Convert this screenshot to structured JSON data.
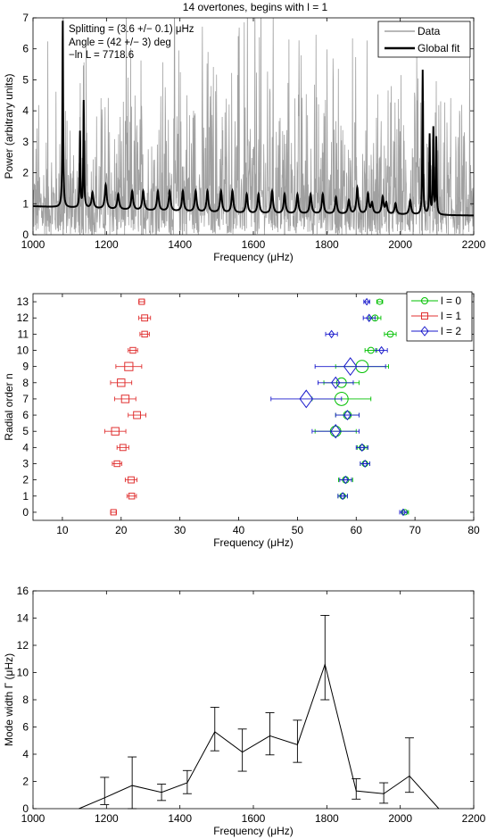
{
  "chart_data": [
    {
      "type": "line",
      "title": "14 overtones, begins with l = 1",
      "xlabel": "Frequency (μHz)",
      "ylabel": "Power (arbitrary units)",
      "xlim": [
        1000,
        2200
      ],
      "ylim": [
        0,
        7
      ],
      "xticks": [
        1000,
        1200,
        1400,
        1600,
        1800,
        2000,
        2200
      ],
      "yticks": [
        0,
        1,
        2,
        3,
        4,
        5,
        6,
        7
      ],
      "legend_position": "top-right",
      "annotations": [
        "Splitting = (3.6 +/− 0.1) μHz",
        "Angle = (42 +/− 3) deg",
        "−ln L = 7718.6"
      ],
      "series": [
        {
          "name": "Data",
          "color": "#a0a0a0",
          "description": "noisy power spectrum with tall spikes at mode frequencies",
          "background_level": 0.9,
          "spikes": [
            [
              1082,
              7.0
            ],
            [
              1128,
              3.8
            ],
            [
              1137,
              4.3
            ],
            [
              1160,
              1.4
            ],
            [
              1196,
              1.5
            ],
            [
              1228,
              1.5
            ],
            [
              1296,
              1.7
            ],
            [
              1376,
              1.6
            ],
            [
              1407,
              2.2
            ],
            [
              1605,
              2.0
            ],
            [
              1685,
              1.5
            ],
            [
              1830,
              2.1
            ],
            [
              1880,
              2.5
            ],
            [
              1910,
              1.8
            ],
            [
              1938,
              2.3
            ],
            [
              1970,
              2.2
            ],
            [
              2035,
              2.5
            ],
            [
              2060,
              2.3
            ],
            [
              2100,
              2.0
            ]
          ]
        },
        {
          "name": "Global fit",
          "color": "#000000",
          "baseline": [
            [
              1000,
              0.92
            ],
            [
              1300,
              0.78
            ],
            [
              1600,
              0.68
            ],
            [
              1900,
              0.66
            ],
            [
              2200,
              0.62
            ]
          ],
          "peaks": [
            [
              1081,
              6.9
            ],
            [
              1128,
              3.3
            ],
            [
              1138,
              4.3
            ],
            [
              1162,
              1.35
            ],
            [
              1198,
              1.6
            ],
            [
              1232,
              1.3
            ],
            [
              1270,
              1.4
            ],
            [
              1300,
              1.4
            ],
            [
              1340,
              1.4
            ],
            [
              1372,
              1.4
            ],
            [
              1408,
              1.4
            ],
            [
              1443,
              1.4
            ],
            [
              1475,
              1.4
            ],
            [
              1512,
              1.4
            ],
            [
              1543,
              1.4
            ],
            [
              1582,
              1.3
            ],
            [
              1614,
              1.3
            ],
            [
              1651,
              1.4
            ],
            [
              1685,
              1.3
            ],
            [
              1720,
              1.3
            ],
            [
              1756,
              1.3
            ],
            [
              1789,
              1.3
            ],
            [
              1825,
              1.2
            ],
            [
              1860,
              1.1
            ],
            [
              1883,
              1.5
            ],
            [
              1912,
              1.3
            ],
            [
              1923,
              1.0
            ],
            [
              1952,
              1.2
            ],
            [
              1962,
              1.0
            ],
            [
              1987,
              1.0
            ],
            [
              2027,
              1.1
            ],
            [
              2061,
              5.3
            ],
            [
              2080,
              3.2
            ],
            [
              2090,
              3.4
            ],
            [
              2098,
              3.1
            ]
          ]
        }
      ]
    },
    {
      "type": "scatter",
      "xlabel": "Frequency (μHz)",
      "ylabel": "Radial order n",
      "xlim": [
        5,
        80
      ],
      "ylim": [
        -0.5,
        13.5
      ],
      "xticks": [
        10,
        20,
        30,
        40,
        50,
        60,
        70,
        80
      ],
      "yticks": [
        0,
        1,
        2,
        3,
        4,
        5,
        6,
        7,
        8,
        9,
        10,
        11,
        12,
        13
      ],
      "legend_position": "top-right",
      "series": [
        {
          "name": "l = 0",
          "color": "#00c000",
          "marker": "circle",
          "points": [
            [
              68.3,
              0,
              0.6
            ],
            [
              57.7,
              1,
              0.8
            ],
            [
              58.2,
              2,
              1.2
            ],
            [
              61.5,
              3,
              0.8
            ],
            [
              61.0,
              4,
              0.8
            ],
            [
              56.5,
              5,
              3.5
            ],
            [
              58.5,
              6,
              2.0
            ],
            [
              57.5,
              7,
              5.0
            ],
            [
              57.5,
              8,
              3.0
            ],
            [
              61.0,
              9,
              4.5
            ],
            [
              62.5,
              10,
              1.0
            ],
            [
              65.8,
              11,
              1.0
            ],
            [
              63.2,
              12,
              1.0
            ],
            [
              64.0,
              13,
              0.5
            ]
          ]
        },
        {
          "name": "l = 1",
          "color": "#e03030",
          "marker": "square",
          "points": [
            [
              18.7,
              0,
              0.5
            ],
            [
              21.8,
              1,
              0.8
            ],
            [
              21.7,
              2,
              1.0
            ],
            [
              19.3,
              3,
              0.8
            ],
            [
              20.3,
              4,
              1.0
            ],
            [
              19.0,
              5,
              1.8
            ],
            [
              22.7,
              6,
              1.5
            ],
            [
              20.7,
              7,
              1.8
            ],
            [
              20.0,
              8,
              1.8
            ],
            [
              21.3,
              9,
              2.2
            ],
            [
              22.0,
              10,
              0.8
            ],
            [
              24.0,
              11,
              0.8
            ],
            [
              24.0,
              12,
              1.0
            ],
            [
              23.5,
              13,
              0.5
            ]
          ]
        },
        {
          "name": "l = 2",
          "color": "#1a1acc",
          "marker": "diamond",
          "points": [
            [
              68.0,
              0,
              0.6
            ],
            [
              57.7,
              1,
              0.8
            ],
            [
              58.2,
              2,
              1.0
            ],
            [
              61.5,
              3,
              0.8
            ],
            [
              61.0,
              4,
              1.0
            ],
            [
              56.5,
              5,
              4.0
            ],
            [
              58.5,
              6,
              2.0
            ],
            [
              51.5,
              7,
              6.0
            ],
            [
              56.5,
              8,
              3.0
            ],
            [
              59.0,
              9,
              6.0
            ],
            [
              64.3,
              10,
              1.0
            ],
            [
              55.8,
              11,
              1.0
            ],
            [
              62.2,
              12,
              1.0
            ],
            [
              61.8,
              13,
              0.5
            ]
          ]
        }
      ]
    },
    {
      "type": "line",
      "xlabel": "Frequency (μHz)",
      "ylabel": "Mode width Γ (μHz)",
      "xlim": [
        1000,
        2200
      ],
      "ylim": [
        0,
        16
      ],
      "xticks": [
        1000,
        1200,
        1400,
        1600,
        1800,
        2000,
        2200
      ],
      "yticks": [
        0,
        2,
        4,
        6,
        8,
        10,
        12,
        14,
        16
      ],
      "series": [
        {
          "name": "",
          "color": "#000000",
          "points": [
            [
              1125,
              0.0,
              0.0,
              0.0
            ],
            [
              1195,
              0.8,
              0.5,
              1.5
            ],
            [
              1270,
              1.7,
              1.7,
              2.1
            ],
            [
              1350,
              1.2,
              0.6,
              0.6
            ],
            [
              1420,
              1.9,
              0.8,
              0.9
            ],
            [
              1495,
              5.65,
              1.4,
              1.8
            ],
            [
              1570,
              4.15,
              1.4,
              1.7
            ],
            [
              1645,
              5.35,
              1.4,
              1.7
            ],
            [
              1720,
              4.7,
              1.3,
              1.8
            ],
            [
              1795,
              10.6,
              2.6,
              3.6
            ],
            [
              1880,
              1.3,
              0.6,
              0.9
            ],
            [
              1955,
              1.1,
              0.7,
              0.8
            ],
            [
              2025,
              2.4,
              1.2,
              2.8
            ],
            [
              2105,
              0.0,
              0.0,
              0.0
            ]
          ]
        }
      ]
    }
  ]
}
